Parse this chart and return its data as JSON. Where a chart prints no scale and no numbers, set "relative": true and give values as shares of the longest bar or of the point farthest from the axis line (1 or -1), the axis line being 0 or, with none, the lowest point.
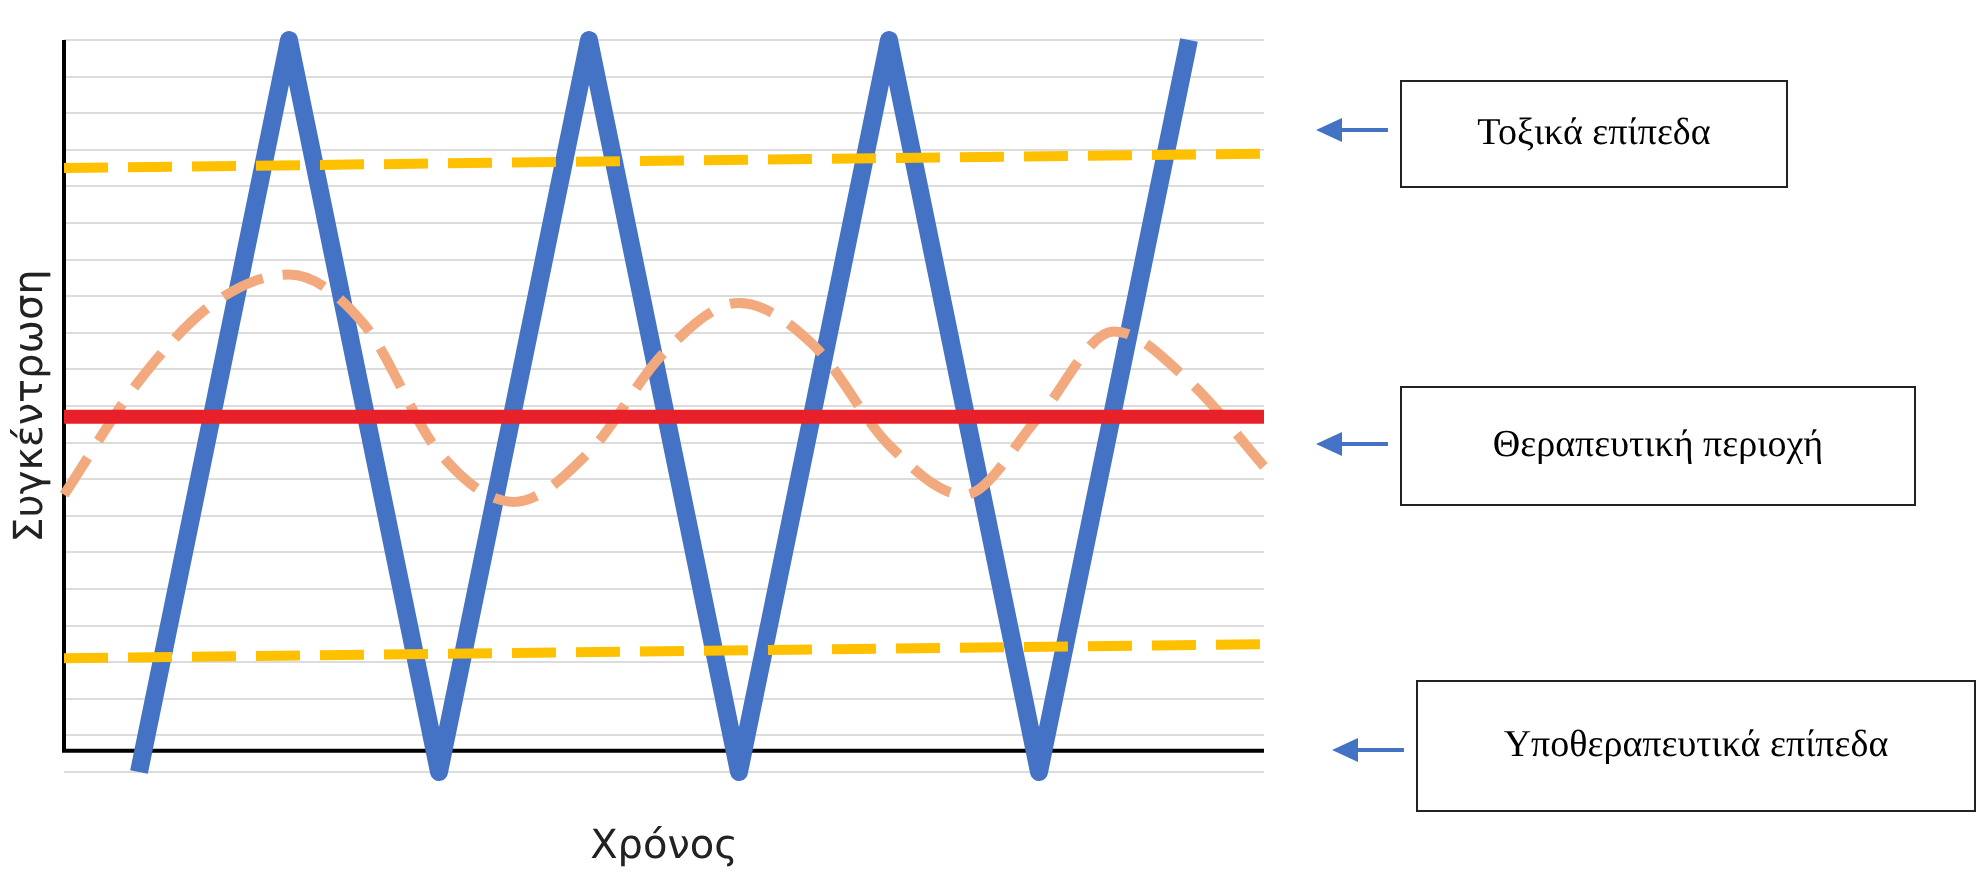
{
  "chart_data": {
    "type": "line",
    "relative": true,
    "xlabel": "Χρόνος",
    "ylabel": "Συγκέντρωση",
    "categories": [
      null,
      null,
      null,
      null,
      null,
      null,
      null,
      null,
      null,
      null,
      null,
      null,
      null,
      null,
      null,
      null,
      null
    ],
    "series": [
      {
        "color": "#f2a97d",
        "line_style": "dashed",
        "values": [
          0.36,
          0.52,
          0.63,
          0.67,
          0.6,
          0.42,
          0.35,
          0.42,
          0.56,
          0.63,
          0.57,
          0.43,
          0.36,
          0.47,
          0.59,
          0.52,
          0.4
        ]
      },
      {
        "color": "#ffc000",
        "line_style": "dashed",
        "values": [
          0.82,
          null,
          null,
          null,
          null,
          null,
          null,
          null,
          null,
          null,
          null,
          null,
          null,
          null,
          null,
          null,
          0.84
        ]
      },
      {
        "color": "#ffc000",
        "line_style": "dashed",
        "values": [
          0.13,
          null,
          null,
          null,
          null,
          null,
          null,
          null,
          null,
          null,
          null,
          null,
          null,
          null,
          null,
          null,
          0.15
        ]
      },
      {
        "color": "#4472c4",
        "line_style": "solid",
        "values": [
          null,
          -0.03,
          0.485,
          1,
          0.485,
          -0.03,
          0.485,
          1,
          0.485,
          -0.03,
          0.485,
          1,
          0.485,
          -0.03,
          0.485,
          1,
          null
        ]
      }
    ],
    "ref_lines": [
      {
        "axis": "y",
        "value": 0.47,
        "color": "#e8202a"
      }
    ],
    "grid": "y",
    "legend": false,
    "marker": "none",
    "annotations": [
      "Τοξικά επίπεδα",
      "Θεραπευτική περιοχή",
      "Υποθεραπευτικά επίπεδα"
    ]
  }
}
